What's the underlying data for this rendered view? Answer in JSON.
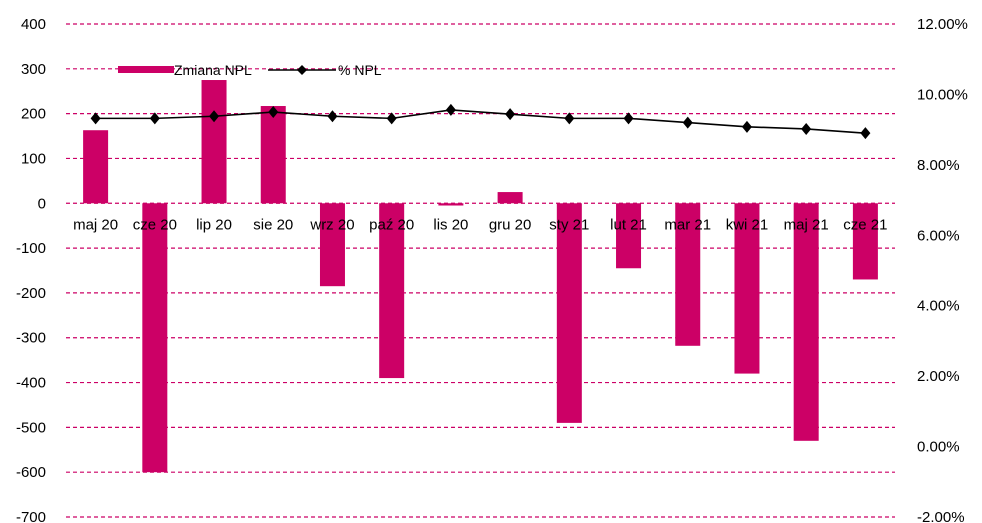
{
  "chart_data": {
    "type": "bar",
    "categories": [
      "maj 20",
      "cze 20",
      "lip 20",
      "sie 20",
      "wrz 20",
      "paź 20",
      "lis 20",
      "gru 20",
      "sty 21",
      "lut 21",
      "mar 21",
      "kwi 21",
      "maj 21",
      "cze 21"
    ],
    "series": [
      {
        "name": "Zmiana NPL",
        "type": "bar",
        "axis": "left",
        "color": "#cc0066",
        "values": [
          163,
          -600,
          275,
          217,
          -185,
          -390,
          -5,
          25,
          -490,
          -145,
          -318,
          -380,
          -530,
          -170
        ]
      },
      {
        "name": "% NPL",
        "type": "line",
        "axis": "right",
        "color": "#000000",
        "values": [
          9.32,
          9.32,
          9.38,
          9.5,
          9.38,
          9.32,
          9.56,
          9.44,
          9.32,
          9.32,
          9.2,
          9.08,
          9.02,
          8.9
        ]
      }
    ],
    "y_left": {
      "ylim": [
        -700,
        400
      ],
      "ticks": [
        "400",
        "300",
        "200",
        "100",
        "0",
        "-100",
        "-200",
        "-300",
        "-400",
        "-500",
        "-600",
        "-700"
      ]
    },
    "y_right": {
      "ylim": [
        -2,
        12
      ],
      "ticks": [
        "12.00%",
        "10.00%",
        "8.00%",
        "6.00%",
        "4.00%",
        "2.00%",
        "0.00%",
        "-2.00%"
      ]
    },
    "grid": true,
    "gridline_color": "#cc0066",
    "legend_position": "top-left"
  }
}
